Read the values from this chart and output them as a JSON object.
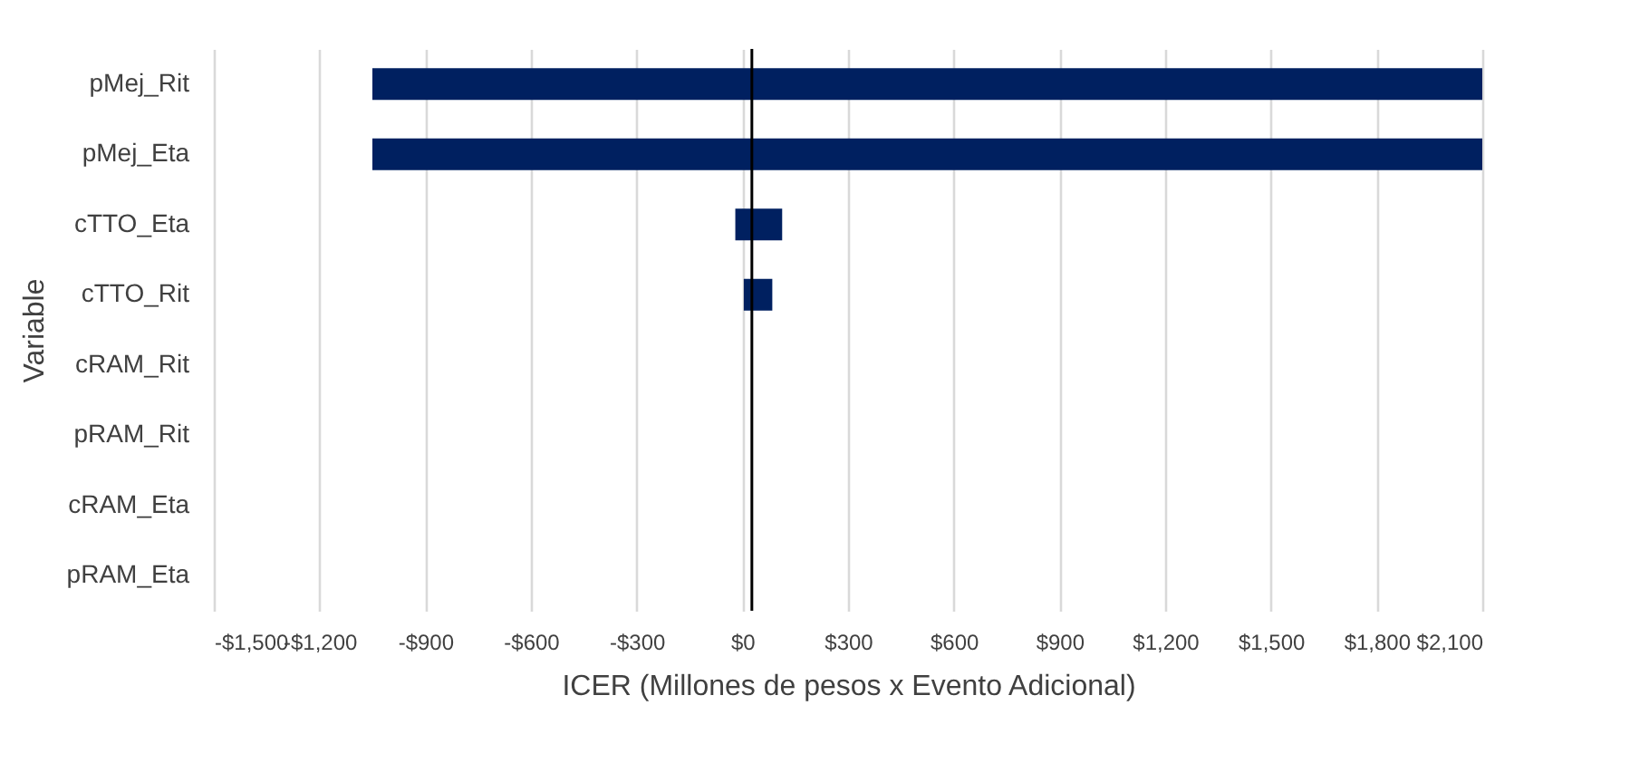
{
  "chart_data": {
    "type": "bar",
    "orientation": "horizontal",
    "xlabel": "ICER (Millones de pesos x Evento Adicional)",
    "ylabel": "Variable",
    "categories": [
      "pMej_Rit",
      "pMej_Eta",
      "cTTO_Eta",
      "cTTO_Rit",
      "cRAM_Rit",
      "pRAM_Rit",
      "cRAM_Eta",
      "pRAM_Eta"
    ],
    "base": [
      -1050,
      -1050,
      -20,
      4,
      null,
      null,
      null,
      null
    ],
    "values": [
      3150,
      3150,
      133,
      81,
      null,
      null,
      null,
      null
    ],
    "color": "#002060",
    "xlim": [
      -1500,
      2100
    ],
    "xticks": [
      {
        "value": -1500,
        "label": "-$1,500"
      },
      {
        "value": -1200,
        "label": "-$1,200"
      },
      {
        "value": -900,
        "label": "-$900"
      },
      {
        "value": -600,
        "label": "-$600"
      },
      {
        "value": -300,
        "label": "-$300"
      },
      {
        "value": 0,
        "label": "$0"
      },
      {
        "value": 300,
        "label": "$300"
      },
      {
        "value": 600,
        "label": "$600"
      },
      {
        "value": 900,
        "label": "$900"
      },
      {
        "value": 1200,
        "label": "$1,200"
      },
      {
        "value": 1500,
        "label": "$1,500"
      },
      {
        "value": 1800,
        "label": "$1,800"
      },
      {
        "value": 2100,
        "label": "$2,100"
      }
    ],
    "ref_lines": [
      {
        "axis": "x",
        "value": 27,
        "color": "#000000"
      }
    ],
    "grid": "x"
  }
}
